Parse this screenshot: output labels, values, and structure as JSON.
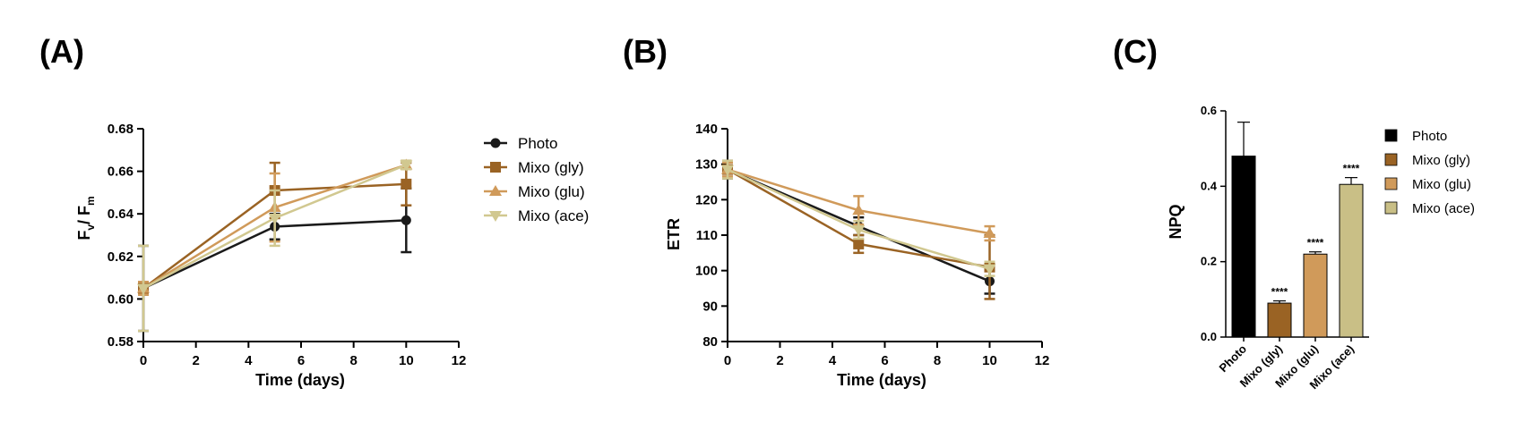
{
  "figure": {
    "panel_labels": [
      "(A)",
      "(B)",
      "(C)"
    ]
  },
  "chart_data": [
    {
      "type": "line",
      "panel": "(A)",
      "xlabel": "Time (days)",
      "ylabel_main": "F",
      "ylabel_sub1": "v",
      "ylabel_mid": "/ F",
      "ylabel_sub2": "m",
      "xlim": [
        0,
        12
      ],
      "ylim": [
        0.58,
        0.68
      ],
      "xticks": [
        0,
        2,
        4,
        6,
        8,
        10,
        12
      ],
      "yticks": [
        0.58,
        0.6,
        0.62,
        0.64,
        0.66,
        0.68
      ],
      "ytick_labels": [
        "0.58",
        "0.60",
        "0.62",
        "0.64",
        "0.66",
        "0.68"
      ],
      "legend_position": "right",
      "series": [
        {
          "name": "Photo",
          "color": "#1a1a1a",
          "marker": "circle",
          "x": [
            0,
            5,
            10
          ],
          "y": [
            0.605,
            0.634,
            0.637
          ],
          "err": [
            0.02,
            0.006,
            0.015
          ]
        },
        {
          "name": "Mixo (gly)",
          "color": "#9a6324",
          "marker": "square",
          "x": [
            0,
            5,
            10
          ],
          "y": [
            0.605,
            0.651,
            0.654
          ],
          "err": [
            0.003,
            0.013,
            0.01
          ]
        },
        {
          "name": "Mixo (glu)",
          "color": "#d09a5a",
          "marker": "triangle-up",
          "x": [
            0,
            5,
            10
          ],
          "y": [
            0.605,
            0.643,
            0.663
          ],
          "err": [
            0.003,
            0.016,
            0.002
          ]
        },
        {
          "name": "Mixo (ace)",
          "color": "#d1c890",
          "marker": "triangle-down",
          "x": [
            0,
            5,
            10
          ],
          "y": [
            0.605,
            0.638,
            0.663
          ],
          "err": [
            0.02,
            0.013,
            0.002
          ]
        }
      ]
    },
    {
      "type": "line",
      "panel": "(B)",
      "xlabel": "Time (days)",
      "ylabel": "ETR",
      "xlim": [
        0,
        12
      ],
      "ylim": [
        80,
        140
      ],
      "xticks": [
        0,
        2,
        4,
        6,
        8,
        10,
        12
      ],
      "yticks": [
        80,
        90,
        100,
        110,
        120,
        130,
        140
      ],
      "series": [
        {
          "name": "Photo",
          "color": "#1a1a1a",
          "marker": "circle",
          "x": [
            0,
            5,
            10
          ],
          "y": [
            128.5,
            112.5,
            97.0
          ],
          "err": [
            2.5,
            2.5,
            3.5
          ]
        },
        {
          "name": "Mixo (gly)",
          "color": "#9a6324",
          "marker": "square",
          "x": [
            0,
            5,
            10
          ],
          "y": [
            128.5,
            107.5,
            101.0
          ],
          "err": [
            2.0,
            2.5,
            9.0
          ]
        },
        {
          "name": "Mixo (glu)",
          "color": "#d09a5a",
          "marker": "triangle-up",
          "x": [
            0,
            5,
            10
          ],
          "y": [
            128.5,
            117.0,
            110.5
          ],
          "err": [
            2.0,
            4.0,
            2.0
          ]
        },
        {
          "name": "Mixo (ace)",
          "color": "#d1c890",
          "marker": "triangle-down",
          "x": [
            0,
            5,
            10
          ],
          "y": [
            128.5,
            111.5,
            100.5
          ],
          "err": [
            2.5,
            2.5,
            2.0
          ]
        }
      ]
    },
    {
      "type": "bar",
      "panel": "(C)",
      "ylabel": "NPQ",
      "ylim": [
        0,
        0.6
      ],
      "yticks": [
        0.0,
        0.2,
        0.4,
        0.6
      ],
      "ytick_labels": [
        "0.0",
        "0.2",
        "0.4",
        "0.6"
      ],
      "categories": [
        "Photo",
        "Mixo (gly)",
        "Mixo (glu)",
        "Mixo (ace)"
      ],
      "values": [
        0.48,
        0.09,
        0.22,
        0.405
      ],
      "errors": [
        0.09,
        0.006,
        0.006,
        0.018
      ],
      "colors": [
        "#000000",
        "#9a6324",
        "#d09a5a",
        "#c9bf86"
      ],
      "significance": [
        "",
        "****",
        "****",
        "****"
      ],
      "legend_position": "right",
      "legend": [
        "Photo",
        "Mixo (gly)",
        "Mixo (glu)",
        "Mixo (ace)"
      ]
    }
  ]
}
